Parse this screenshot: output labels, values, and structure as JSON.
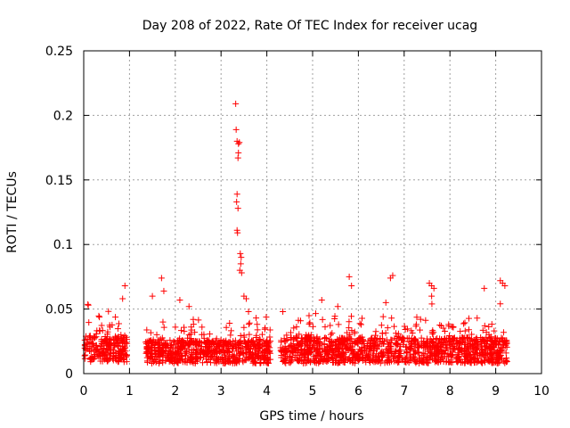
{
  "chart_data": {
    "type": "scatter",
    "title": "Day 208 of 2022, Rate Of TEC Index for receiver ucag",
    "xlabel": "GPS time / hours",
    "ylabel": "ROTI / TECUs",
    "xlim": [
      0,
      10
    ],
    "ylim": [
      0,
      0.25
    ],
    "x_ticks": [
      "0",
      "1",
      "2",
      "3",
      "4",
      "5",
      "6",
      "7",
      "8",
      "9",
      "10"
    ],
    "y_ticks": [
      "0",
      "0.05",
      "0.1",
      "0.15",
      "0.2",
      "0.25"
    ],
    "grid": true,
    "marker": "plus",
    "color": "#ff0000",
    "segments": [
      {
        "start": 0.0,
        "end": 0.95,
        "base": 0.018,
        "spread": 0.02
      },
      {
        "start": 1.35,
        "end": 4.08,
        "base": 0.016,
        "spread": 0.018
      },
      {
        "start": 4.3,
        "end": 9.25,
        "base": 0.017,
        "spread": 0.02
      }
    ],
    "highlights": [
      [
        3.32,
        0.209
      ],
      [
        3.33,
        0.189
      ],
      [
        3.35,
        0.18
      ],
      [
        3.38,
        0.178
      ],
      [
        3.4,
        0.179
      ],
      [
        3.38,
        0.171
      ],
      [
        3.37,
        0.167
      ],
      [
        3.35,
        0.139
      ],
      [
        3.34,
        0.133
      ],
      [
        3.37,
        0.128
      ],
      [
        3.35,
        0.111
      ],
      [
        3.36,
        0.109
      ],
      [
        3.42,
        0.093
      ],
      [
        3.44,
        0.09
      ],
      [
        3.43,
        0.085
      ],
      [
        3.41,
        0.08
      ],
      [
        3.45,
        0.078
      ],
      [
        3.5,
        0.06
      ],
      [
        3.55,
        0.058
      ],
      [
        3.6,
        0.048
      ],
      [
        0.1,
        0.053
      ],
      [
        0.9,
        0.068
      ],
      [
        0.85,
        0.058
      ],
      [
        1.5,
        0.06
      ],
      [
        1.7,
        0.074
      ],
      [
        1.75,
        0.064
      ],
      [
        2.1,
        0.057
      ],
      [
        2.3,
        0.052
      ],
      [
        5.2,
        0.057
      ],
      [
        5.55,
        0.052
      ],
      [
        5.8,
        0.075
      ],
      [
        5.85,
        0.068
      ],
      [
        6.7,
        0.074
      ],
      [
        6.75,
        0.076
      ],
      [
        6.6,
        0.055
      ],
      [
        7.55,
        0.07
      ],
      [
        7.6,
        0.068
      ],
      [
        7.65,
        0.066
      ],
      [
        7.6,
        0.06
      ],
      [
        8.75,
        0.066
      ],
      [
        9.1,
        0.072
      ],
      [
        9.15,
        0.07
      ],
      [
        9.2,
        0.068
      ],
      [
        9.1,
        0.054
      ],
      [
        4.35,
        0.048
      ]
    ]
  }
}
